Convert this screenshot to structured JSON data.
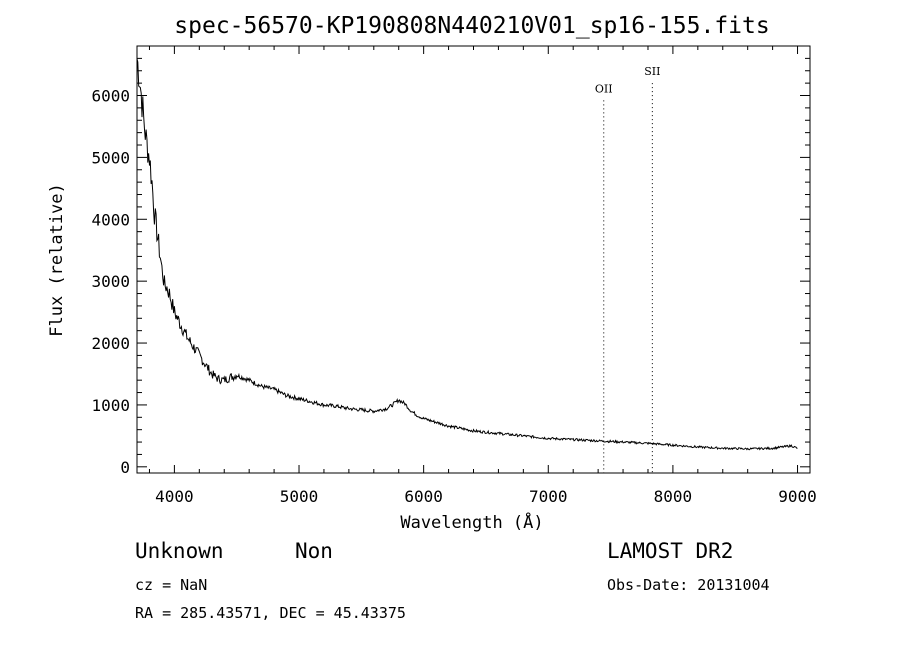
{
  "chart_data": {
    "type": "line",
    "title": "spec-56570-KP190808N440210V01_sp16-155.fits",
    "xlabel": "Wavelength (Å)",
    "ylabel": "Flux (relative)",
    "xlim": [
      3700,
      9100
    ],
    "ylim": [
      -100,
      6800
    ],
    "x_ticks": [
      4000,
      5000,
      6000,
      7000,
      8000,
      9000
    ],
    "y_ticks": [
      0,
      1000,
      2000,
      3000,
      4000,
      5000,
      6000
    ],
    "grid": false,
    "series": [
      {
        "x": [
          3700,
          3720,
          3740,
          3760,
          3780,
          3800,
          3820,
          3840,
          3860,
          3880,
          3900,
          3920,
          3940,
          3960,
          3980,
          4000,
          4050,
          4100,
          4150,
          4200,
          4250,
          4300,
          4350,
          4400,
          4450,
          4500,
          4600,
          4700,
          4800,
          4900,
          5000,
          5100,
          5200,
          5300,
          5400,
          5500,
          5600,
          5700,
          5750,
          5800,
          5850,
          5900,
          5950,
          6000,
          6100,
          6200,
          6300,
          6400,
          6500,
          6600,
          6700,
          6800,
          6900,
          7000,
          7200,
          7400,
          7600,
          7800,
          8000,
          8200,
          8400,
          8600,
          8800,
          8950,
          9000
        ],
        "y": [
          6600,
          6300,
          5900,
          5500,
          5200,
          5000,
          4600,
          4100,
          3800,
          3500,
          3200,
          2950,
          2900,
          2800,
          2650,
          2500,
          2300,
          2100,
          1950,
          1800,
          1650,
          1500,
          1420,
          1400,
          1450,
          1480,
          1400,
          1300,
          1250,
          1150,
          1100,
          1050,
          1000,
          980,
          940,
          920,
          900,
          940,
          1000,
          1080,
          1020,
          900,
          830,
          780,
          720,
          660,
          620,
          580,
          560,
          540,
          520,
          500,
          480,
          460,
          440,
          420,
          400,
          380,
          350,
          320,
          300,
          290,
          300,
          340,
          300
        ]
      }
    ],
    "line_markers": [
      {
        "label": "OII",
        "x": 7445
      },
      {
        "label": "SII",
        "x": 7835
      }
    ]
  },
  "footer": {
    "class_label": "Unknown",
    "subclass_label": "Non",
    "cz": "cz = NaN",
    "coords": "RA = 285.43571, DEC =  45.43375",
    "survey": "LAMOST DR2",
    "obs_date": "Obs-Date: 20131004"
  }
}
